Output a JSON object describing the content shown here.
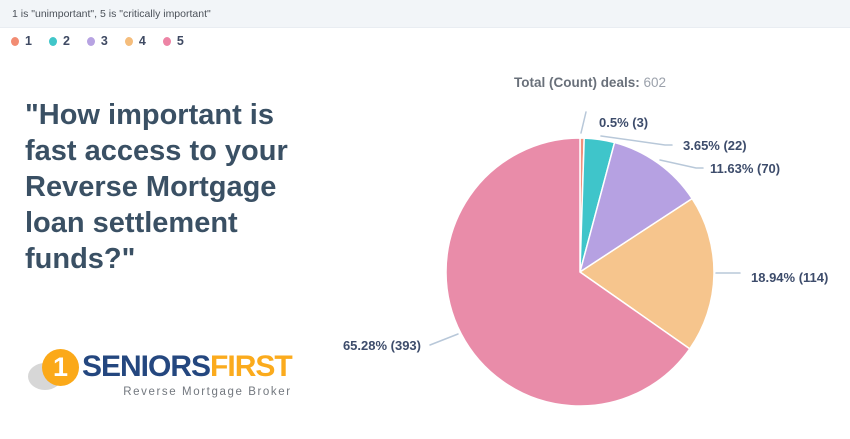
{
  "header": {
    "note": "1 is \"unimportant\", 5 is \"critically important\""
  },
  "legend": {
    "items": [
      {
        "label": "1",
        "color": "#f28c73"
      },
      {
        "label": "2",
        "color": "#41c6c9"
      },
      {
        "label": "3",
        "color": "#b7a3e2"
      },
      {
        "label": "4",
        "color": "#f5bd7c"
      },
      {
        "label": "5",
        "color": "#ed84a5"
      }
    ]
  },
  "question": {
    "text": "\"How important is fast access to your Reverse Mortgage loan settlement funds?\""
  },
  "chart": {
    "title_bold": "Total (Count) deals:",
    "title_value": "602"
  },
  "chart_data": {
    "type": "pie",
    "title": "Total (Count) deals: 602",
    "total_count": 602,
    "categories": [
      "1",
      "2",
      "3",
      "4",
      "5"
    ],
    "values": [
      3,
      22,
      70,
      114,
      393
    ],
    "percentages": [
      0.5,
      3.65,
      11.63,
      18.94,
      65.28
    ],
    "labels": [
      "0.5% (3)",
      "3.65% (22)",
      "11.63% (70)",
      "18.94% (114)",
      "65.28% (393)"
    ],
    "colors": [
      "#f2917c",
      "#3fc5ca",
      "#b6a1e2",
      "#f6c58d",
      "#e98ca9"
    ],
    "start_angle_deg": 0,
    "direction": "clockwise",
    "legend_position": "top-left",
    "leader_line_color": "#b8c8d9"
  },
  "logo": {
    "mark_number": "1",
    "word_primary": "SENIORS",
    "word_secondary": "FIRST",
    "tagline": "Reverse Mortgage Broker",
    "navy": "#24477f",
    "amber": "#fbab1d"
  }
}
